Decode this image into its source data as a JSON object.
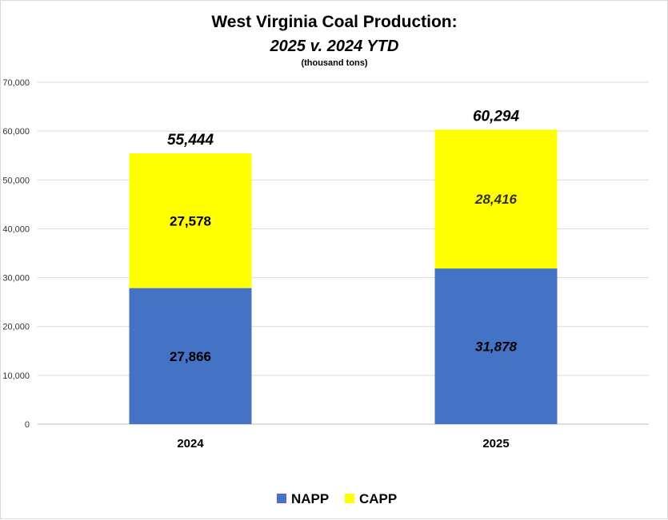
{
  "chart_data": {
    "type": "bar",
    "stacked": true,
    "title": "West Virginia Coal Production:",
    "subtitle": "2025 v. 2024 YTD",
    "units": "(thousand tons)",
    "categories": [
      "2024",
      "2025"
    ],
    "series": [
      {
        "name": "NAPP",
        "color": "#4472C4",
        "values": [
          27866,
          31878
        ],
        "labels": [
          "27,866",
          "31,878"
        ]
      },
      {
        "name": "CAPP",
        "color": "#FFFF00",
        "values": [
          27578,
          28416
        ],
        "labels": [
          "27,578",
          "28,416"
        ]
      }
    ],
    "totals": [
      55444,
      60294
    ],
    "total_labels": [
      "55,444",
      "60,294"
    ],
    "ylim": [
      0,
      70000
    ],
    "yticks": [
      0,
      10000,
      20000,
      30000,
      40000,
      50000,
      60000,
      70000
    ],
    "ytick_labels": [
      "0",
      "10,000",
      "20,000",
      "30,000",
      "40,000",
      "50,000",
      "60,000",
      "70,000"
    ],
    "grid": true,
    "legend_position": "bottom"
  }
}
